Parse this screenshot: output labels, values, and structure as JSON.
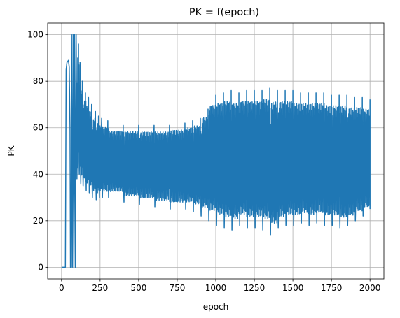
{
  "chart_data": {
    "type": "line",
    "title": "PK = f(epoch)",
    "xlabel": "epoch",
    "ylabel": "PK",
    "xlim": [
      -90,
      2090
    ],
    "ylim": [
      -5,
      105
    ],
    "x_ticks": [
      0,
      250,
      500,
      750,
      1000,
      1250,
      1500,
      1750,
      2000
    ],
    "y_ticks": [
      0,
      20,
      40,
      60,
      80,
      100
    ],
    "grid": true,
    "legend": "none",
    "series": [
      {
        "color": "#1f77b4",
        "x_range": [
          0,
          2000
        ],
        "points": [
          [
            0,
            0
          ],
          [
            20,
            0
          ],
          [
            25,
            0
          ],
          [
            30,
            85
          ],
          [
            35,
            88
          ],
          [
            45,
            89
          ],
          [
            50,
            86
          ],
          [
            55,
            60
          ],
          [
            58,
            0
          ],
          [
            62,
            0
          ],
          [
            65,
            100
          ],
          [
            70,
            0
          ],
          [
            75,
            100
          ],
          [
            80,
            0
          ],
          [
            85,
            100
          ],
          [
            90,
            0
          ],
          [
            95,
            100
          ],
          [
            100,
            38
          ],
          [
            110,
            96
          ],
          [
            115,
            40
          ],
          [
            120,
            88
          ],
          [
            125,
            36
          ],
          [
            135,
            80
          ],
          [
            140,
            35
          ],
          [
            155,
            75
          ],
          [
            160,
            33
          ],
          [
            175,
            73
          ],
          [
            180,
            32
          ],
          [
            195,
            70
          ],
          [
            200,
            30
          ],
          [
            220,
            67
          ],
          [
            225,
            29
          ],
          [
            240,
            65
          ],
          [
            245,
            30
          ],
          [
            260,
            64
          ],
          [
            265,
            30
          ],
          [
            300,
            63
          ],
          [
            305,
            30
          ],
          [
            400,
            61
          ],
          [
            405,
            28
          ],
          [
            500,
            61
          ],
          [
            505,
            27
          ],
          [
            600,
            61
          ],
          [
            605,
            26
          ],
          [
            700,
            61
          ],
          [
            705,
            25
          ],
          [
            800,
            62
          ],
          [
            805,
            25
          ],
          [
            850,
            63
          ],
          [
            855,
            24
          ],
          [
            900,
            64
          ],
          [
            905,
            22
          ],
          [
            950,
            68
          ],
          [
            955,
            20
          ],
          [
            1000,
            74
          ],
          [
            1005,
            18
          ],
          [
            1050,
            75
          ],
          [
            1055,
            17
          ],
          [
            1100,
            76
          ],
          [
            1105,
            16
          ],
          [
            1150,
            75
          ],
          [
            1155,
            18
          ],
          [
            1200,
            76
          ],
          [
            1205,
            17
          ],
          [
            1250,
            76
          ],
          [
            1255,
            17
          ],
          [
            1300,
            76
          ],
          [
            1305,
            16
          ],
          [
            1350,
            77
          ],
          [
            1355,
            14
          ],
          [
            1400,
            76
          ],
          [
            1405,
            17
          ],
          [
            1450,
            76
          ],
          [
            1455,
            18
          ],
          [
            1500,
            76
          ],
          [
            1505,
            18
          ],
          [
            1550,
            75
          ],
          [
            1555,
            19
          ],
          [
            1600,
            75
          ],
          [
            1605,
            18
          ],
          [
            1650,
            75
          ],
          [
            1655,
            19
          ],
          [
            1700,
            75
          ],
          [
            1705,
            18
          ],
          [
            1750,
            74
          ],
          [
            1755,
            18
          ],
          [
            1800,
            74
          ],
          [
            1805,
            17
          ],
          [
            1850,
            74
          ],
          [
            1855,
            18
          ],
          [
            1900,
            73
          ],
          [
            1905,
            20
          ],
          [
            1950,
            73
          ],
          [
            1955,
            22
          ],
          [
            2000,
            72
          ],
          [
            2000,
            25
          ]
        ]
      }
    ]
  }
}
